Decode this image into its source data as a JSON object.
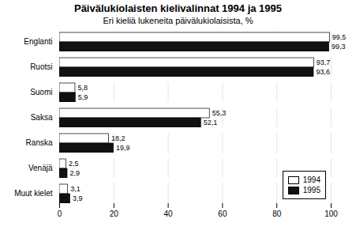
{
  "chart_data": {
    "type": "bar",
    "orientation": "horizontal",
    "title": "Päivälukiolaisten kielivalinnat 1994 ja 1995",
    "subtitle": "Eri kieliä lukeneita päivälukiolaisista, %",
    "categories": [
      "Englanti",
      "Ruotsi",
      "Suomi",
      "Saksa",
      "Ranska",
      "Venäjä",
      "Muut kielet"
    ],
    "series": [
      {
        "name": "1994",
        "color": "#ffffff",
        "values": [
          99.5,
          93.7,
          5.8,
          55.3,
          18.2,
          2.5,
          3.1
        ],
        "value_labels": [
          "99,5",
          "93,7",
          "5,8",
          "55,3",
          "18,2",
          "2,5",
          "3,1"
        ]
      },
      {
        "name": "1995",
        "color": "#111111",
        "values": [
          99.3,
          93.6,
          5.9,
          52.1,
          19.9,
          2.9,
          3.9
        ],
        "value_labels": [
          "99,3",
          "93,6",
          "5,9",
          "52,1",
          "19,9",
          "2,9",
          "3,9"
        ]
      }
    ],
    "xlim": [
      0,
      100
    ],
    "xticks": [
      0,
      20,
      40,
      60,
      80,
      100
    ],
    "grid": true,
    "legend": "lower right",
    "data_labels": true
  }
}
